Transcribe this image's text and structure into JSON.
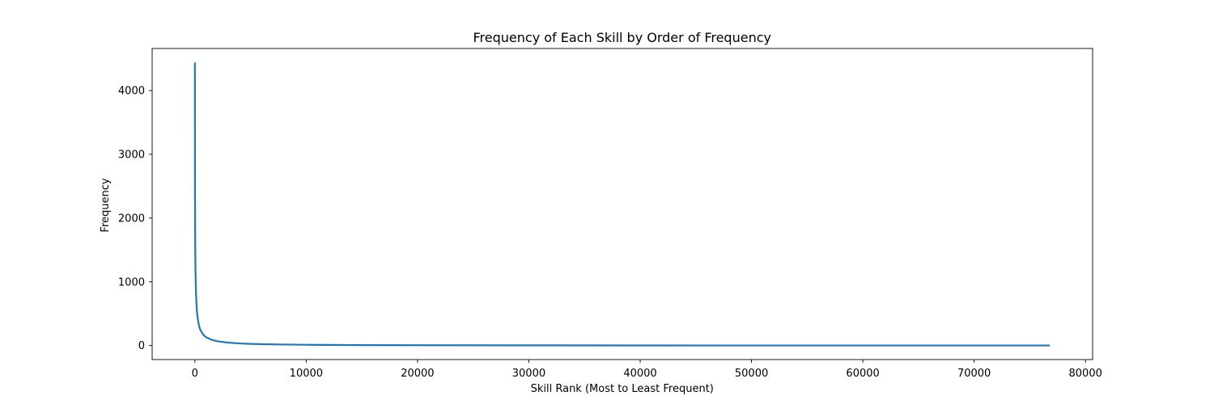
{
  "chart_data": {
    "type": "line",
    "title": "Frequency of Each Skill by Order of Frequency",
    "xlabel": "Skill Rank (Most to Least Frequent)",
    "ylabel": "Frequency",
    "xlim": [
      -3840,
      80640
    ],
    "ylim": [
      -220,
      4660
    ],
    "xticks": [
      0,
      10000,
      20000,
      30000,
      40000,
      50000,
      60000,
      70000,
      80000
    ],
    "xtick_labels": [
      "0",
      "10000",
      "20000",
      "30000",
      "40000",
      "50000",
      "60000",
      "70000",
      "80000"
    ],
    "yticks": [
      0,
      1000,
      2000,
      3000,
      4000
    ],
    "ytick_labels": [
      "0",
      "1000",
      "2000",
      "3000",
      "4000"
    ],
    "grid": false,
    "series": [
      {
        "color": "#1f77b4",
        "x": [
          0,
          1,
          3,
          5,
          10,
          20,
          30,
          50,
          75,
          100,
          150,
          200,
          300,
          400,
          500,
          750,
          1000,
          1500,
          2000,
          3000,
          4000,
          5000,
          7500,
          10000,
          15000,
          20000,
          30000,
          40000,
          50000,
          60000,
          70000,
          76800
        ],
        "y": [
          4440,
          3900,
          3300,
          2900,
          2350,
          1850,
          1550,
          1200,
          980,
          820,
          620,
          500,
          370,
          290,
          240,
          170,
          130,
          90,
          68,
          45,
          33,
          26,
          17,
          12,
          7,
          5,
          3,
          2,
          1,
          1,
          1,
          1
        ]
      }
    ]
  }
}
